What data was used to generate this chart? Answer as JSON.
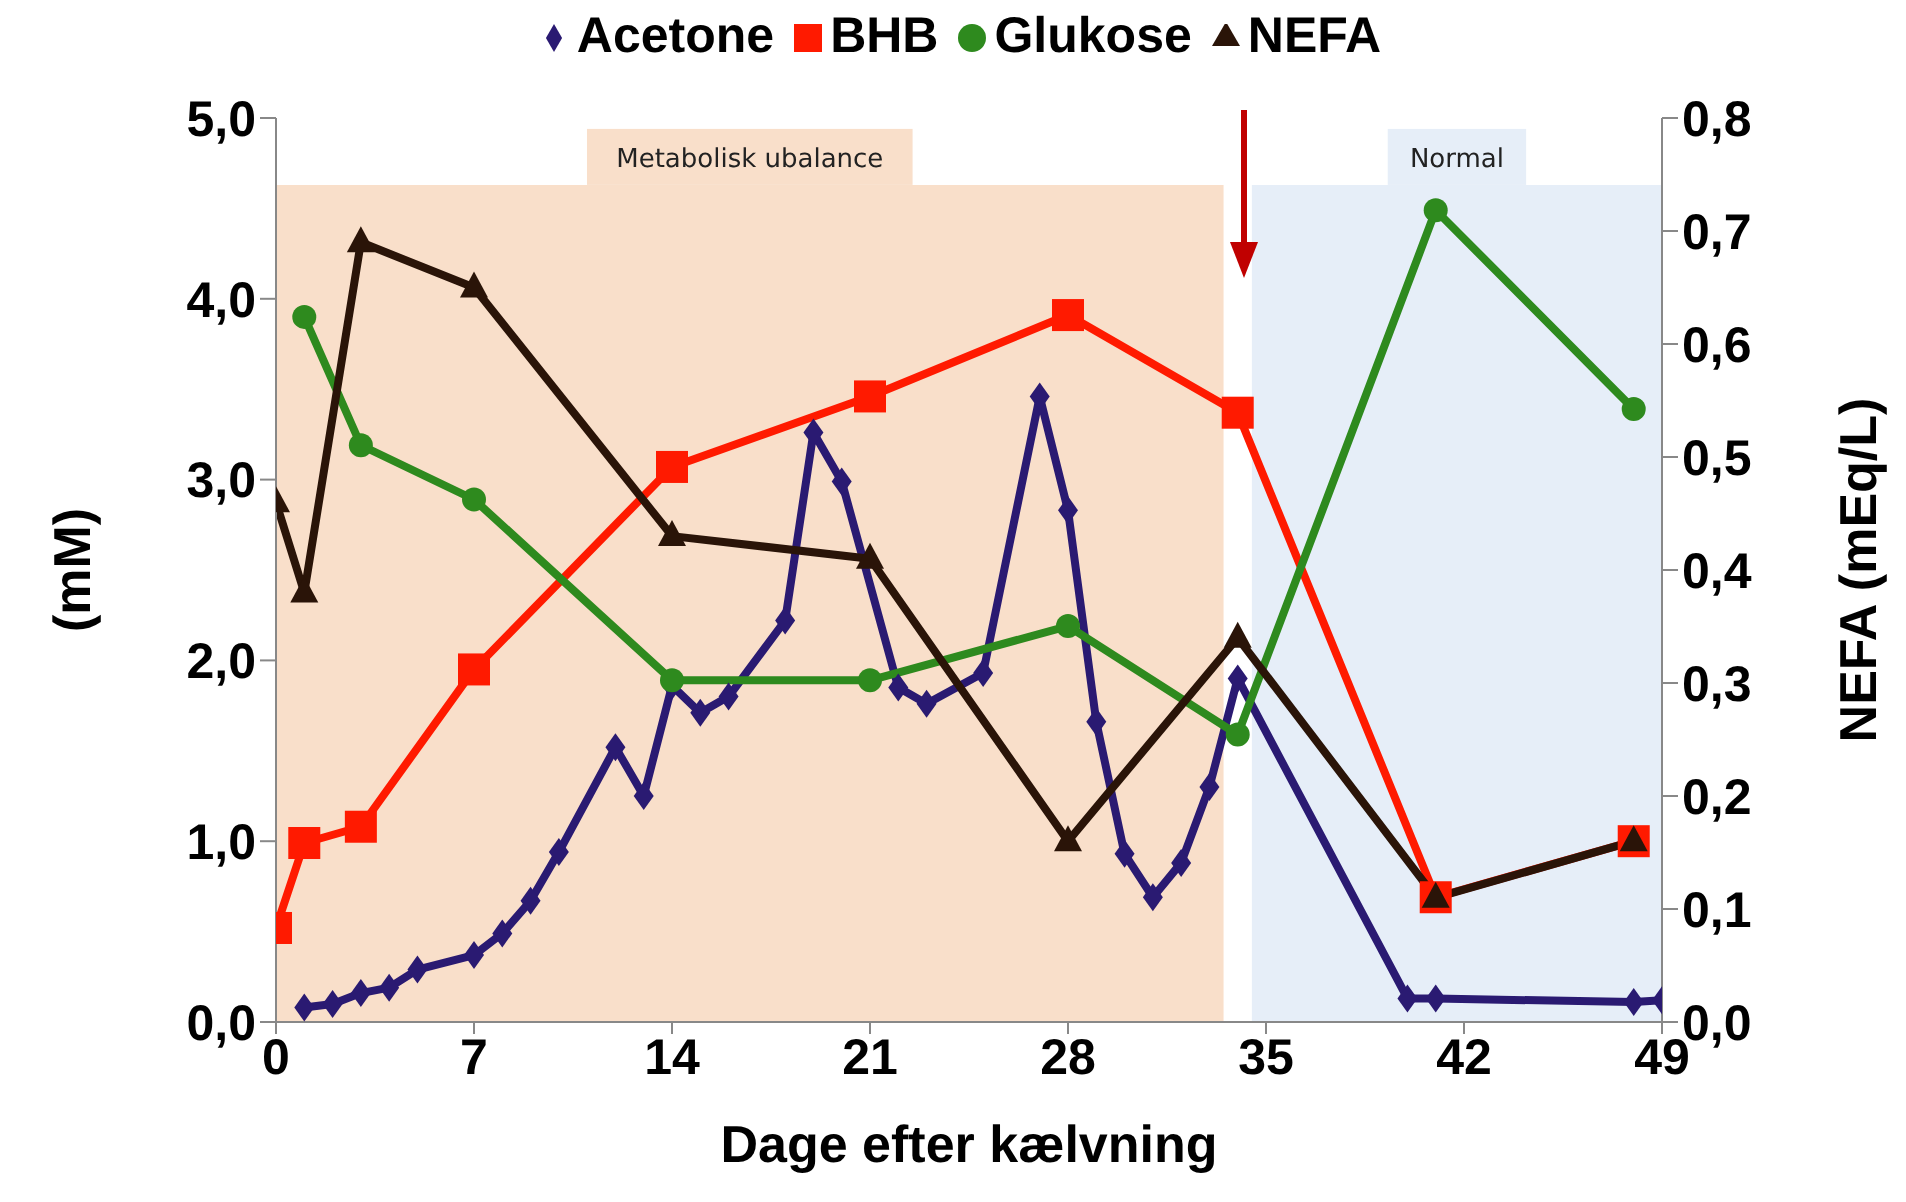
{
  "chart_data": {
    "type": "line",
    "xlabel": "Dage efter kælvning",
    "ylabel": "(mM)",
    "y2label": "NEFA (mEq/L)",
    "xlim": [
      0,
      49
    ],
    "xticks": [
      0,
      7,
      14,
      21,
      28,
      35,
      42,
      49
    ],
    "ylim": [
      0,
      5
    ],
    "yticks": [
      {
        "value": 0,
        "label": "0,0"
      },
      {
        "value": 1,
        "label": "1,0"
      },
      {
        "value": 2,
        "label": "2,0"
      },
      {
        "value": 3,
        "label": "3,0"
      },
      {
        "value": 4,
        "label": "4,0"
      },
      {
        "value": 5,
        "label": "5,0"
      }
    ],
    "y2lim": [
      0,
      0.8
    ],
    "y2ticks": [
      {
        "value": 0,
        "label": "0,0"
      },
      {
        "value": 0.1,
        "label": "0,1"
      },
      {
        "value": 0.2,
        "label": "0,2"
      },
      {
        "value": 0.3,
        "label": "0,3"
      },
      {
        "value": 0.4,
        "label": "0,4"
      },
      {
        "value": 0.5,
        "label": "0,5"
      },
      {
        "value": 0.6,
        "label": "0,6"
      },
      {
        "value": 0.7,
        "label": "0,7"
      },
      {
        "value": 0.8,
        "label": "0,8"
      }
    ],
    "grid": false,
    "legend": "top",
    "bands": [
      {
        "axis": "x",
        "from": 0,
        "to": 33.5,
        "label": "Metabolisk ubalance",
        "color": "#f9dfca"
      },
      {
        "axis": "x",
        "from": 34.5,
        "to": 49,
        "label": "Normal",
        "color": "#e6eef8"
      }
    ],
    "series": [
      {
        "name": "Acetone",
        "color": "#2a1a72",
        "marker": "diamond",
        "x": [
          1,
          2,
          3,
          4,
          5,
          7,
          8,
          9,
          10,
          12,
          13,
          14,
          15,
          16,
          18,
          19,
          20,
          22,
          23,
          25,
          27,
          28,
          29,
          30,
          31,
          32,
          33,
          34,
          40,
          41,
          48,
          49
        ],
        "values": [
          0.08,
          0.1,
          0.16,
          0.19,
          0.29,
          0.37,
          0.49,
          0.67,
          0.94,
          1.52,
          1.25,
          1.86,
          1.71,
          1.8,
          2.22,
          3.26,
          2.99,
          1.85,
          1.76,
          1.93,
          3.46,
          2.83,
          1.66,
          0.93,
          0.69,
          0.88,
          1.3,
          1.9,
          0.13,
          0.13,
          0.11,
          0.12
        ]
      },
      {
        "name": "BHB",
        "color": "#ff1a00",
        "marker": "square",
        "x": [
          0,
          1,
          3,
          7,
          14,
          21,
          28,
          34,
          41,
          48
        ],
        "values": [
          0.52,
          0.99,
          1.08,
          1.95,
          3.07,
          3.46,
          3.91,
          3.37,
          0.69,
          1.0
        ]
      },
      {
        "name": "Glukose",
        "color": "#2e8a1e",
        "marker": "circle",
        "x": [
          1,
          3,
          7,
          14,
          21,
          28,
          34,
          41,
          48
        ],
        "values": [
          3.9,
          3.19,
          2.89,
          1.89,
          1.89,
          2.19,
          1.59,
          4.49,
          3.39
        ]
      },
      {
        "name": "NEFA",
        "color": "#2a1408",
        "marker": "triangle",
        "axis": "y2",
        "x": [
          0,
          1,
          3,
          7,
          14,
          21,
          28,
          34,
          41,
          48
        ],
        "values": [
          0.46,
          0.38,
          0.69,
          0.65,
          0.43,
          0.41,
          0.16,
          0.34,
          0.11,
          0.16
        ]
      }
    ]
  }
}
